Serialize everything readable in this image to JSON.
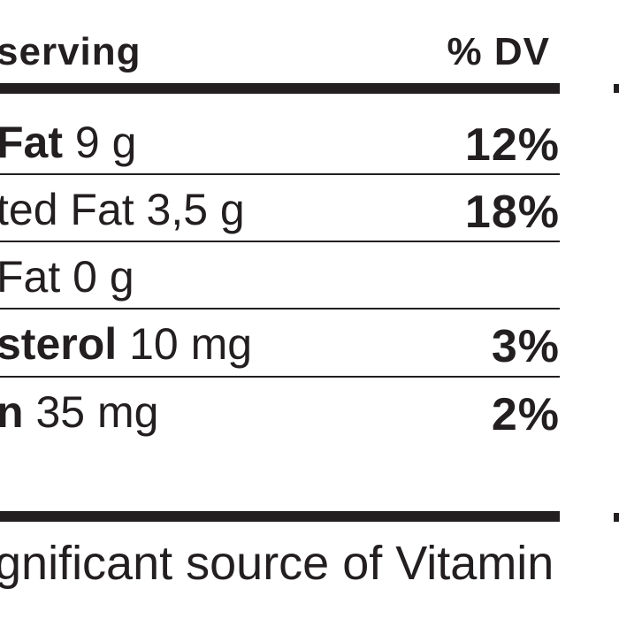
{
  "header": {
    "serving": "serving",
    "dv": "% DV"
  },
  "rows": [
    {
      "bold": "Fat",
      "text": "9 g",
      "dv": "12%"
    },
    {
      "text": "ted Fat 3,5 g",
      "dv": "18%"
    },
    {
      "text": "Fat 0 g"
    },
    {
      "bold": "sterol",
      "text": "10 mg",
      "dv": "3%"
    },
    {
      "bold": "n",
      "text": "35 mg",
      "dv": "2%"
    }
  ],
  "footnote": "gnificant source of Vitamin"
}
